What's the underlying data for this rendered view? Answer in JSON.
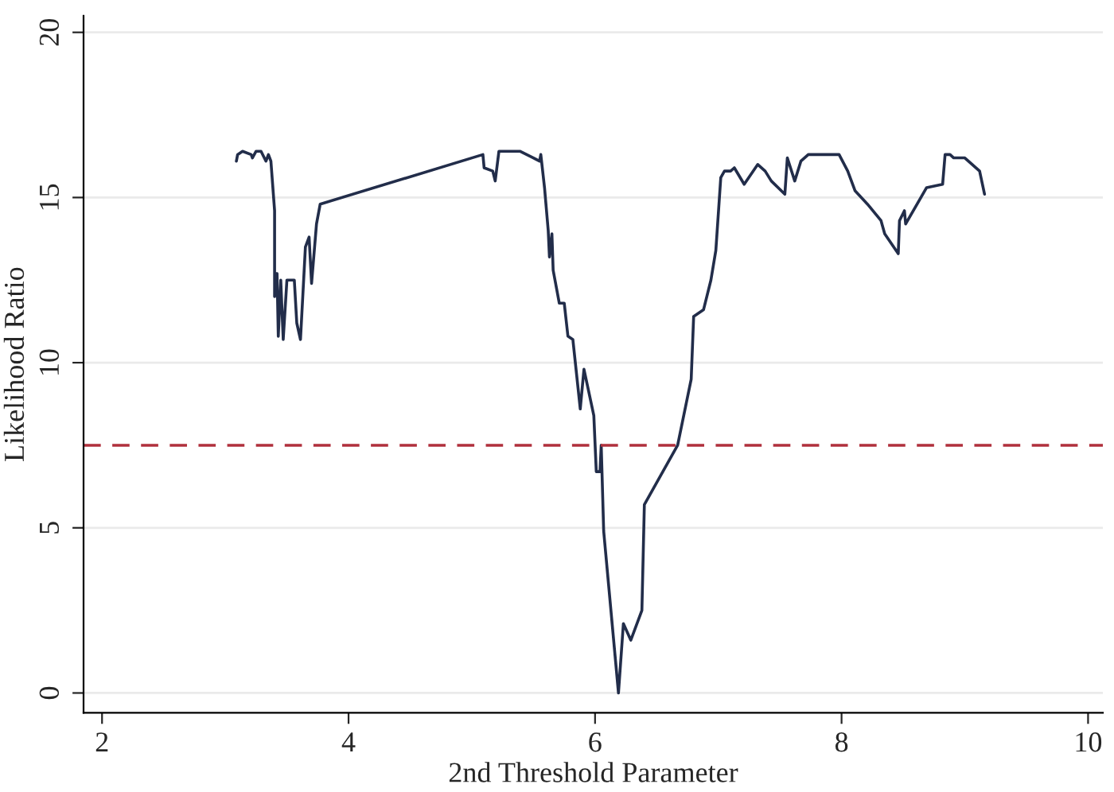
{
  "chart_data": {
    "type": "line",
    "xlabel": "2nd Threshold Parameter",
    "ylabel": "Likelihood Ratio",
    "xlim": [
      1.85,
      10.12
    ],
    "xticks": [
      2,
      4,
      6,
      8,
      10
    ],
    "ylim": [
      -0.6,
      20.5
    ],
    "yticks": [
      0,
      5,
      10,
      15,
      20
    ],
    "grid": "y",
    "series": [
      {
        "color": "#222d4a",
        "x": [
          3.09,
          3.1,
          3.14,
          3.21,
          3.22,
          3.25,
          3.29,
          3.33,
          3.35,
          3.37,
          3.4,
          3.4,
          3.42,
          3.43,
          3.45,
          3.47,
          3.5,
          3.56,
          3.58,
          3.61,
          3.65,
          3.68,
          3.7,
          3.74,
          3.77,
          5.09,
          5.1,
          5.17,
          5.19,
          5.22,
          5.39,
          5.5,
          5.55,
          5.56,
          5.59,
          5.62,
          5.63,
          5.65,
          5.66,
          5.71,
          5.75,
          5.78,
          5.82,
          5.88,
          5.91,
          5.99,
          6.01,
          6.04,
          6.05,
          6.07,
          6.19,
          6.23,
          6.29,
          6.38,
          6.4,
          6.67,
          6.78,
          6.8,
          6.88,
          6.94,
          6.98,
          7.02,
          7.05,
          7.1,
          7.13,
          7.21,
          7.32,
          7.38,
          7.43,
          7.54,
          7.56,
          7.62,
          7.67,
          7.73,
          7.98,
          8.05,
          8.11,
          8.21,
          8.32,
          8.35,
          8.46,
          8.47,
          8.51,
          8.52,
          8.69,
          8.82,
          8.84,
          8.88,
          8.91,
          9.0,
          9.06,
          9.12,
          9.16
        ],
        "values": [
          16.1,
          16.3,
          16.4,
          16.3,
          16.2,
          16.4,
          16.4,
          16.1,
          16.3,
          16.1,
          14.6,
          12.0,
          12.7,
          10.8,
          12.5,
          10.7,
          12.5,
          12.5,
          11.2,
          10.7,
          13.5,
          13.8,
          12.4,
          14.2,
          14.8,
          16.3,
          15.9,
          15.8,
          15.5,
          16.4,
          16.4,
          16.2,
          16.1,
          16.3,
          15.3,
          14.0,
          13.2,
          13.9,
          12.8,
          11.8,
          11.8,
          10.8,
          10.7,
          8.6,
          9.8,
          8.4,
          6.7,
          6.7,
          7.5,
          4.9,
          0.0,
          2.1,
          1.6,
          2.5,
          5.7,
          7.5,
          9.5,
          11.4,
          11.6,
          12.5,
          13.4,
          15.6,
          15.8,
          15.8,
          15.9,
          15.4,
          16.0,
          15.8,
          15.5,
          15.1,
          16.2,
          15.5,
          16.1,
          16.3,
          16.3,
          15.8,
          15.2,
          14.8,
          14.3,
          13.9,
          13.3,
          14.3,
          14.6,
          14.2,
          15.3,
          15.4,
          16.3,
          16.3,
          16.2,
          16.2,
          16.0,
          15.8,
          15.1
        ]
      }
    ],
    "ref_lines": [
      {
        "axis": "y",
        "value": 7.5,
        "color": "#b0303c",
        "line_style": "dashed"
      }
    ]
  }
}
